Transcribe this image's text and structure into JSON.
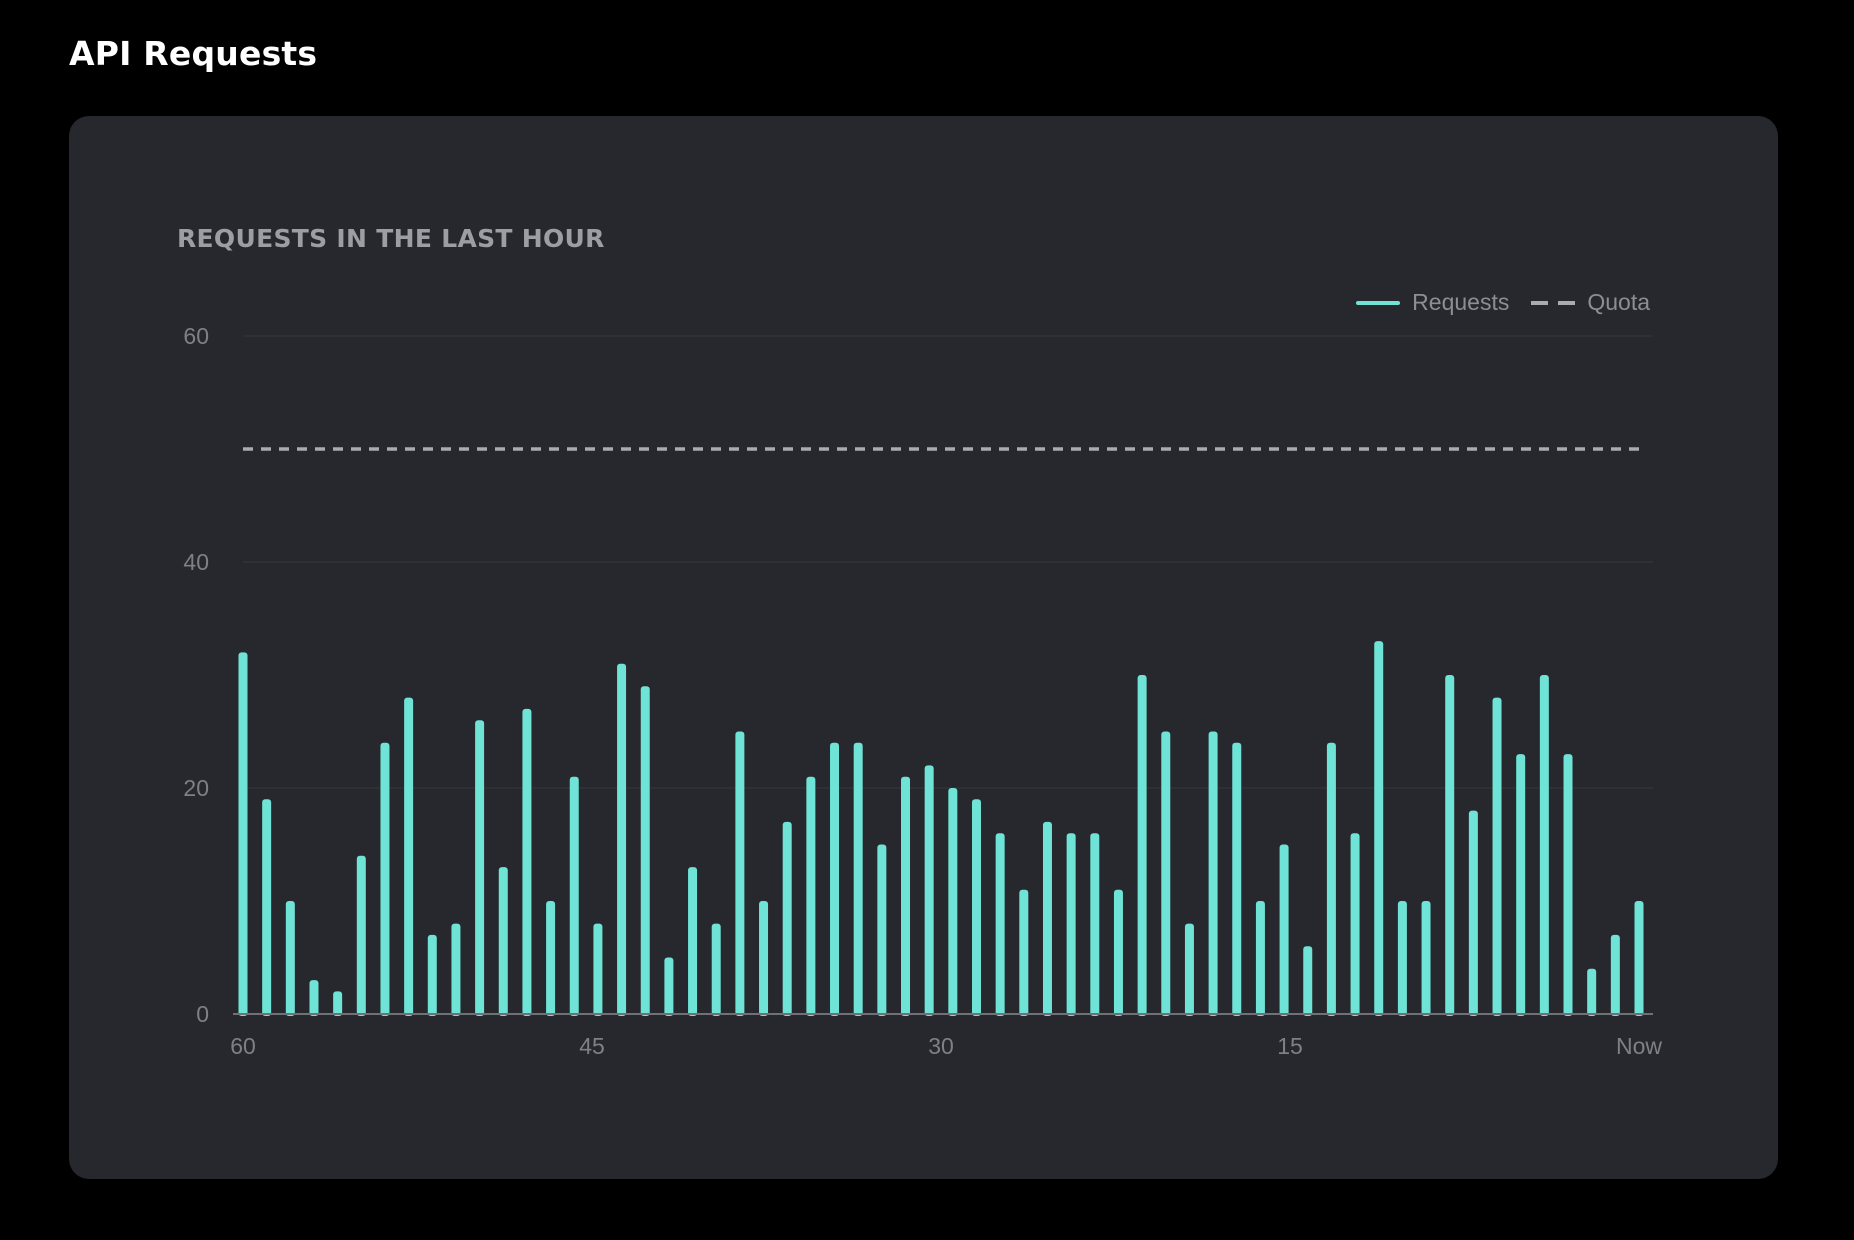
{
  "page": {
    "title": "API Requests"
  },
  "chart_data": {
    "type": "bar",
    "title": "REQUESTS IN THE LAST HOUR",
    "xlabel": "",
    "ylabel": "",
    "ylim": [
      0,
      60
    ],
    "y_ticks": [
      "0",
      "20",
      "40",
      "60"
    ],
    "x_ticks": [
      "60",
      "45",
      "30",
      "15",
      "Now"
    ],
    "x_range": [
      60,
      1
    ],
    "grid": true,
    "legend": {
      "placement": "top-right",
      "entries": [
        "Requests",
        "Quota"
      ]
    },
    "series": [
      {
        "name": "Requests",
        "color": "#6fe3d6",
        "x": [
          60,
          59,
          58,
          57,
          56,
          55,
          54,
          53,
          52,
          51,
          50,
          49,
          48,
          47,
          46,
          45,
          44,
          43,
          42,
          41,
          40,
          39,
          38,
          37,
          36,
          35,
          34,
          33,
          32,
          31,
          30,
          29,
          28,
          27,
          26,
          25,
          24,
          23,
          22,
          21,
          20,
          19,
          18,
          17,
          16,
          15,
          14,
          13,
          12,
          11,
          10,
          9,
          8,
          7,
          6,
          5,
          4,
          3,
          2,
          1
        ],
        "values": [
          32,
          19,
          10,
          3,
          2,
          14,
          24,
          28,
          7,
          8,
          26,
          13,
          27,
          10,
          21,
          8,
          31,
          29,
          5,
          13,
          8,
          25,
          10,
          17,
          21,
          24,
          24,
          15,
          21,
          22,
          20,
          19,
          16,
          11,
          17,
          16,
          16,
          11,
          30,
          25,
          8,
          25,
          24,
          10,
          15,
          6,
          24,
          16,
          33,
          10,
          10,
          30,
          18,
          28,
          23,
          30,
          23,
          4,
          7,
          10
        ]
      },
      {
        "name": "Quota",
        "color": "#a9abb0",
        "style": "dashed",
        "value": 50
      }
    ]
  }
}
